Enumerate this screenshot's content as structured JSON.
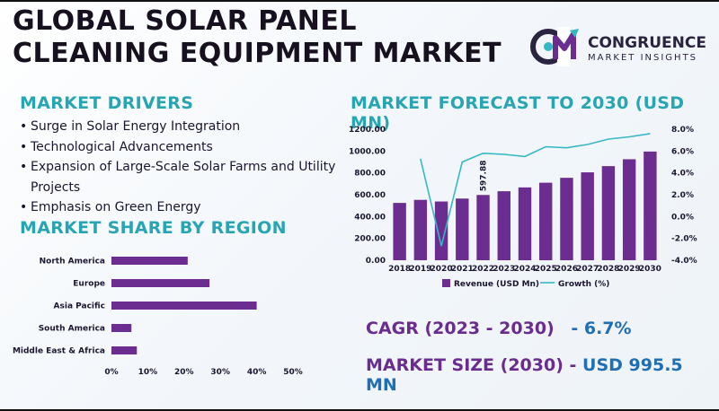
{
  "header": {
    "title_line1": "GLOBAL SOLAR PANEL",
    "title_line2": "CLEANING EQUIPMENT MARKET",
    "logo_name": "CONGRUENCE",
    "logo_tagline": "MARKET INSIGHTS",
    "logo_mark": "CM"
  },
  "drivers": {
    "title": "MARKET DRIVERS",
    "items": [
      "Surge in Solar Energy Integration",
      "Technological Advancements",
      "Expansion of Large-Scale Solar Farms and Utility Projects",
      "Emphasis on Green Energy"
    ]
  },
  "region": {
    "title": "MARKET SHARE BY REGION"
  },
  "forecast": {
    "title": "MARKET FORECAST TO 2030 (USD MN)"
  },
  "stats": {
    "cagr_label": "CAGR (2023 - 2030)",
    "cagr_value": "- 6.7%",
    "size_label": "MARKET SIZE (2030) -",
    "size_value": "USD 995.5 MN"
  },
  "colors": {
    "bar": "#6b2d8f",
    "line": "#35b8c6",
    "accent": "#27a5b3"
  },
  "chart_data": [
    {
      "type": "bar",
      "orientation": "horizontal",
      "categories": [
        "North America",
        "Europe",
        "Asia Pacific",
        "South America",
        "Middle East & Africa"
      ],
      "values": [
        21,
        27,
        40,
        5.5,
        7
      ],
      "xticks": [
        "0%",
        "10%",
        "20%",
        "30%",
        "40%",
        "50%"
      ],
      "xlim": [
        0,
        50
      ],
      "grid": false
    },
    {
      "type": "bar",
      "categories": [
        "2018",
        "2019",
        "2020",
        "2021",
        "2022",
        "2023",
        "2024",
        "2025",
        "2026",
        "2027",
        "2028",
        "2029",
        "2030"
      ],
      "series": [
        {
          "name": "Revenue (USD Mn)",
          "type": "bar",
          "axis": "left",
          "values": [
            525,
            553,
            538,
            565,
            597.88,
            632,
            667,
            710,
            755,
            805,
            862,
            925,
            995.5
          ]
        },
        {
          "name": "Growth (%)",
          "type": "line",
          "axis": "right",
          "values": [
            null,
            5.3,
            -2.7,
            5.0,
            5.8,
            5.7,
            5.5,
            6.4,
            6.3,
            6.6,
            7.1,
            7.3,
            7.6
          ]
        }
      ],
      "data_labels": [
        {
          "category": "2022",
          "text": "597.88"
        }
      ],
      "yticks_left": [
        "0.00",
        "200.00",
        "400.00",
        "600.00",
        "800.00",
        "1000.00",
        "1200.00"
      ],
      "yticks_right": [
        "-4.0%",
        "-2.0%",
        "0.0%",
        "2.0%",
        "4.0%",
        "6.0%",
        "8.0%"
      ],
      "ylim_left": [
        0,
        1200
      ],
      "ylim_right": [
        -4,
        8
      ],
      "legend": "bottom",
      "grid": false
    }
  ]
}
